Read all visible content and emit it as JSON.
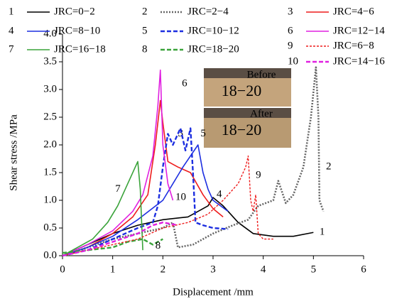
{
  "chart_data": {
    "type": "line",
    "xlabel": "Displacement /mm",
    "ylabel": "Shear stress /MPa",
    "xlim": [
      0,
      6
    ],
    "xticks": [
      0,
      1,
      2,
      3,
      4,
      5,
      6
    ],
    "ylim": [
      0,
      4
    ],
    "yticks": [
      {
        "value": 0,
        "label": "0.0"
      },
      {
        "value": 0.5,
        "label": "0.5"
      },
      {
        "value": 1,
        "label": "1.0"
      },
      {
        "value": 1.5,
        "label": "1.5"
      },
      {
        "value": 2,
        "label": "2.0"
      },
      {
        "value": 2.5,
        "label": "2.5"
      },
      {
        "value": 3,
        "label": "3.0"
      },
      {
        "value": 3.5,
        "label": "3.5"
      },
      {
        "value": 4,
        "label": "4.0"
      }
    ],
    "inset": {
      "before": "Before",
      "after": "After",
      "sample": "18−20"
    },
    "series": [
      {
        "id": "1",
        "name": "JRC=0−2",
        "color": "#000000",
        "dash": "solid",
        "x": [
          0,
          0.5,
          1,
          1.5,
          2,
          2.5,
          2.9,
          3.0,
          3.2,
          3.5,
          3.8,
          4.2,
          4.6,
          5.0
        ],
        "values": [
          0,
          0.2,
          0.4,
          0.55,
          0.65,
          0.7,
          0.9,
          1.05,
          0.9,
          0.6,
          0.4,
          0.35,
          0.35,
          0.42
        ]
      },
      {
        "id": "2",
        "name": "JRC=2−4",
        "color": "#666666",
        "dash": "dot",
        "x": [
          0,
          0.5,
          1,
          1.5,
          2,
          2.2,
          2.3,
          2.6,
          3.0,
          3.4,
          3.7,
          3.9,
          4.2,
          4.3,
          4.45,
          4.6,
          4.8,
          4.95,
          5.05,
          5.1,
          5.12,
          5.2
        ],
        "values": [
          0,
          0.15,
          0.3,
          0.4,
          0.5,
          0.6,
          0.15,
          0.2,
          0.4,
          0.55,
          0.65,
          0.9,
          1.0,
          1.35,
          0.95,
          1.1,
          1.6,
          2.5,
          3.4,
          2.5,
          1.0,
          0.8
        ]
      },
      {
        "id": "3",
        "name": "JRC=4−6",
        "color": "#ee1c1c",
        "dash": "solid",
        "x": [
          0,
          0.5,
          1,
          1.4,
          1.7,
          1.85,
          1.95,
          2.0,
          2.1,
          2.3,
          2.55,
          2.8,
          3.0,
          3.2
        ],
        "values": [
          0,
          0.15,
          0.4,
          0.7,
          1.1,
          2.0,
          2.8,
          2.4,
          1.7,
          1.6,
          1.5,
          1.1,
          0.85,
          0.7
        ]
      },
      {
        "id": "4",
        "name": "JRC=8−10",
        "color": "#1c2ee0",
        "dash": "solid",
        "x": [
          0,
          0.5,
          1,
          1.5,
          2,
          2.4,
          2.7,
          2.8,
          2.9,
          3.0,
          3.3
        ],
        "values": [
          0,
          0.15,
          0.35,
          0.65,
          1.0,
          1.6,
          2.0,
          1.5,
          1.2,
          1.0,
          0.8
        ]
      },
      {
        "id": "5",
        "name": "JRC=10−12",
        "color": "#1c2ee0",
        "dash": "dash",
        "x": [
          0,
          0.5,
          1,
          1.5,
          1.8,
          1.9,
          2.0,
          2.1,
          2.2,
          2.35,
          2.45,
          2.55,
          2.6,
          2.65,
          2.8,
          3.0,
          3.3
        ],
        "values": [
          0,
          0.1,
          0.3,
          0.5,
          0.6,
          0.9,
          1.6,
          2.2,
          2.0,
          2.3,
          1.9,
          2.3,
          1.5,
          0.6,
          0.55,
          0.5,
          0.48
        ]
      },
      {
        "id": "6",
        "name": "JRC=12−14",
        "color": "#e020e0",
        "dash": "solid",
        "x": [
          0,
          0.5,
          1,
          1.4,
          1.6,
          1.8,
          1.9,
          1.95,
          2.0,
          2.1,
          2.2
        ],
        "values": [
          0,
          0.2,
          0.45,
          0.8,
          1.1,
          1.8,
          2.7,
          3.35,
          2.0,
          1.3,
          1.0
        ]
      },
      {
        "id": "7",
        "name": "JRC=16−18",
        "color": "#3aa33a",
        "dash": "solid",
        "x": [
          0,
          0.3,
          0.6,
          0.9,
          1.1,
          1.3,
          1.45,
          1.5,
          1.55,
          1.6
        ],
        "values": [
          0,
          0.15,
          0.3,
          0.6,
          0.9,
          1.3,
          1.6,
          1.7,
          1.2,
          0.1
        ]
      },
      {
        "id": "8",
        "name": "JRC=18−20",
        "color": "#3aa33a",
        "dash": "dash",
        "x": [
          0,
          0.5,
          1,
          1.3,
          1.6,
          1.8,
          2.0
        ],
        "values": [
          0.05,
          0.1,
          0.15,
          0.25,
          0.3,
          0.2,
          0.3
        ]
      },
      {
        "id": "9",
        "name": "JRC=6−8",
        "color": "#ee1c1c",
        "dash": "shortdash",
        "x": [
          0,
          0.5,
          1,
          1.5,
          2,
          2.5,
          2.9,
          3.2,
          3.5,
          3.65,
          3.7,
          3.75,
          3.8,
          3.85,
          3.9,
          4.0,
          4.2
        ],
        "values": [
          0,
          0.1,
          0.2,
          0.3,
          0.5,
          0.6,
          0.75,
          1.0,
          1.3,
          1.6,
          1.8,
          1.0,
          0.8,
          1.1,
          0.4,
          0.3,
          0.3
        ]
      },
      {
        "id": "10",
        "name": "JRC=14−16",
        "color": "#e020e0",
        "dash": "dash",
        "x": [
          0,
          0.5,
          1,
          1.5,
          1.8,
          2,
          2.3
        ],
        "values": [
          0,
          0.1,
          0.25,
          0.4,
          0.55,
          0.6,
          0.55
        ]
      }
    ]
  }
}
